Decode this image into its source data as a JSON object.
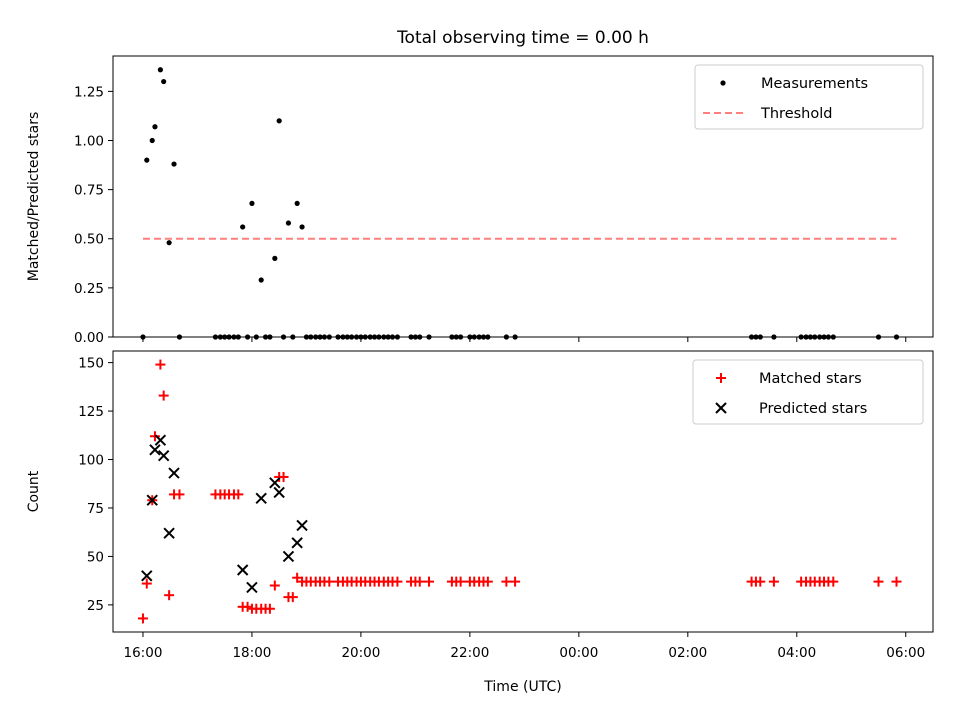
{
  "chart_data": {
    "type": "scatter",
    "title": "Total observing time = 0.00 h",
    "xlabel": "Time (UTC)",
    "x_unit": "hours_after_00:00_first_night",
    "x_range": [
      "15:27",
      "06:30"
    ],
    "x_ticks": [
      {
        "t": 16,
        "label": "16:00"
      },
      {
        "t": 18,
        "label": "18:00"
      },
      {
        "t": 20,
        "label": "20:00"
      },
      {
        "t": 22,
        "label": "22:00"
      },
      {
        "t": 24,
        "label": "00:00"
      },
      {
        "t": 26,
        "label": "02:00"
      },
      {
        "t": 28,
        "label": "04:00"
      },
      {
        "t": 30,
        "label": "06:00"
      }
    ],
    "panels": [
      {
        "id": "ratio",
        "ylabel": "Matched/Predicted stars",
        "ylim": [
          0,
          1.43
        ],
        "y_ticks": [
          0,
          0.25,
          0.5,
          0.75,
          1.0,
          1.25
        ],
        "y_tick_labels": [
          "0.00",
          "0.25",
          "0.50",
          "0.75",
          "1.00",
          "1.25"
        ],
        "legend": {
          "position": "upper right",
          "entries": [
            {
              "label": "Measurements",
              "marker": "dot",
              "color": "#000000"
            },
            {
              "label": "Threshold",
              "marker": "dashed-line",
              "color": "#ff7f7f"
            }
          ]
        },
        "series": [
          {
            "name": "Measurements",
            "marker": "dot",
            "color": "#000000",
            "points": [
              [
                16.0,
                0
              ],
              [
                16.07,
                0.9
              ],
              [
                16.17,
                1.0
              ],
              [
                16.22,
                1.07
              ],
              [
                16.32,
                1.36
              ],
              [
                16.38,
                1.3
              ],
              [
                16.48,
                0.48
              ],
              [
                16.57,
                0.88
              ],
              [
                16.67,
                0
              ],
              [
                17.33,
                0
              ],
              [
                17.42,
                0
              ],
              [
                17.5,
                0
              ],
              [
                17.58,
                0
              ],
              [
                17.67,
                0
              ],
              [
                17.75,
                0
              ],
              [
                17.83,
                0.56
              ],
              [
                17.92,
                0
              ],
              [
                18.0,
                0.68
              ],
              [
                18.08,
                0
              ],
              [
                18.17,
                0.29
              ],
              [
                18.25,
                0
              ],
              [
                18.33,
                0
              ],
              [
                18.42,
                0.4
              ],
              [
                18.5,
                1.1
              ],
              [
                18.58,
                0
              ],
              [
                18.67,
                0.58
              ],
              [
                18.75,
                0
              ],
              [
                18.83,
                0.68
              ],
              [
                18.92,
                0.56
              ],
              [
                19.0,
                0
              ],
              [
                19.08,
                0
              ],
              [
                19.17,
                0
              ],
              [
                19.25,
                0
              ],
              [
                19.33,
                0
              ],
              [
                19.42,
                0
              ],
              [
                19.58,
                0
              ],
              [
                19.67,
                0
              ],
              [
                19.75,
                0
              ],
              [
                19.83,
                0
              ],
              [
                19.92,
                0
              ],
              [
                20.0,
                0
              ],
              [
                20.08,
                0
              ],
              [
                20.17,
                0
              ],
              [
                20.25,
                0
              ],
              [
                20.33,
                0
              ],
              [
                20.42,
                0
              ],
              [
                20.5,
                0
              ],
              [
                20.58,
                0
              ],
              [
                20.67,
                0
              ],
              [
                20.92,
                0
              ],
              [
                21.0,
                0
              ],
              [
                21.08,
                0
              ],
              [
                21.25,
                0
              ],
              [
                21.67,
                0
              ],
              [
                21.75,
                0
              ],
              [
                21.83,
                0
              ],
              [
                22.0,
                0
              ],
              [
                22.08,
                0
              ],
              [
                22.17,
                0
              ],
              [
                22.25,
                0
              ],
              [
                22.33,
                0
              ],
              [
                22.67,
                0
              ],
              [
                22.83,
                0
              ],
              [
                27.17,
                0
              ],
              [
                27.25,
                0
              ],
              [
                27.33,
                0
              ],
              [
                27.58,
                0
              ],
              [
                28.08,
                0
              ],
              [
                28.17,
                0
              ],
              [
                28.25,
                0
              ],
              [
                28.33,
                0
              ],
              [
                28.42,
                0
              ],
              [
                28.5,
                0
              ],
              [
                28.58,
                0
              ],
              [
                28.67,
                0
              ],
              [
                29.5,
                0
              ],
              [
                29.83,
                0
              ]
            ]
          },
          {
            "name": "Threshold",
            "line": "dashed",
            "color": "#ff7f7f",
            "points": [
              [
                16.0,
                0.5
              ],
              [
                29.83,
                0.5
              ]
            ]
          }
        ]
      },
      {
        "id": "count",
        "ylabel": "Count",
        "ylim": [
          11,
          156
        ],
        "y_ticks": [
          25,
          50,
          75,
          100,
          125,
          150
        ],
        "y_tick_labels": [
          "25",
          "50",
          "75",
          "100",
          "125",
          "150"
        ],
        "legend": {
          "position": "upper right",
          "entries": [
            {
              "label": "Matched stars",
              "marker": "plus",
              "color": "#ff0000"
            },
            {
              "label": "Predicted stars",
              "marker": "x",
              "color": "#000000"
            }
          ]
        },
        "series": [
          {
            "name": "Matched stars",
            "marker": "plus",
            "color": "#ff0000",
            "points": [
              [
                16.0,
                18
              ],
              [
                16.07,
                36
              ],
              [
                16.17,
                79
              ],
              [
                16.22,
                112
              ],
              [
                16.32,
                149
              ],
              [
                16.38,
                133
              ],
              [
                16.48,
                30
              ],
              [
                16.57,
                82
              ],
              [
                16.67,
                82
              ],
              [
                17.33,
                82
              ],
              [
                17.42,
                82
              ],
              [
                17.5,
                82
              ],
              [
                17.58,
                82
              ],
              [
                17.67,
                82
              ],
              [
                17.75,
                82
              ],
              [
                17.83,
                24
              ],
              [
                17.92,
                24
              ],
              [
                18.0,
                23
              ],
              [
                18.08,
                23
              ],
              [
                18.17,
                23
              ],
              [
                18.25,
                23
              ],
              [
                18.33,
                23
              ],
              [
                18.42,
                35
              ],
              [
                18.5,
                91
              ],
              [
                18.58,
                91
              ],
              [
                18.67,
                29
              ],
              [
                18.75,
                29
              ],
              [
                18.83,
                39
              ],
              [
                18.92,
                37
              ],
              [
                19.0,
                37
              ],
              [
                19.08,
                37
              ],
              [
                19.17,
                37
              ],
              [
                19.25,
                37
              ],
              [
                19.33,
                37
              ],
              [
                19.42,
                37
              ],
              [
                19.58,
                37
              ],
              [
                19.67,
                37
              ],
              [
                19.75,
                37
              ],
              [
                19.83,
                37
              ],
              [
                19.92,
                37
              ],
              [
                20.0,
                37
              ],
              [
                20.08,
                37
              ],
              [
                20.17,
                37
              ],
              [
                20.25,
                37
              ],
              [
                20.33,
                37
              ],
              [
                20.42,
                37
              ],
              [
                20.5,
                37
              ],
              [
                20.58,
                37
              ],
              [
                20.67,
                37
              ],
              [
                20.92,
                37
              ],
              [
                21.0,
                37
              ],
              [
                21.08,
                37
              ],
              [
                21.25,
                37
              ],
              [
                21.67,
                37
              ],
              [
                21.75,
                37
              ],
              [
                21.83,
                37
              ],
              [
                22.0,
                37
              ],
              [
                22.08,
                37
              ],
              [
                22.17,
                37
              ],
              [
                22.25,
                37
              ],
              [
                22.33,
                37
              ],
              [
                22.67,
                37
              ],
              [
                22.83,
                37
              ],
              [
                27.17,
                37
              ],
              [
                27.25,
                37
              ],
              [
                27.33,
                37
              ],
              [
                27.58,
                37
              ],
              [
                28.08,
                37
              ],
              [
                28.17,
                37
              ],
              [
                28.25,
                37
              ],
              [
                28.33,
                37
              ],
              [
                28.42,
                37
              ],
              [
                28.5,
                37
              ],
              [
                28.58,
                37
              ],
              [
                28.67,
                37
              ],
              [
                29.5,
                37
              ],
              [
                29.83,
                37
              ]
            ]
          },
          {
            "name": "Predicted stars",
            "marker": "x",
            "color": "#000000",
            "points": [
              [
                16.07,
                40
              ],
              [
                16.17,
                79
              ],
              [
                16.22,
                105
              ],
              [
                16.32,
                110
              ],
              [
                16.38,
                102
              ],
              [
                16.48,
                62
              ],
              [
                16.57,
                93
              ],
              [
                17.83,
                43
              ],
              [
                18.0,
                34
              ],
              [
                18.17,
                80
              ],
              [
                18.42,
                88
              ],
              [
                18.5,
                83
              ],
              [
                18.67,
                50
              ],
              [
                18.83,
                57
              ],
              [
                18.92,
                66
              ]
            ]
          }
        ]
      }
    ]
  }
}
